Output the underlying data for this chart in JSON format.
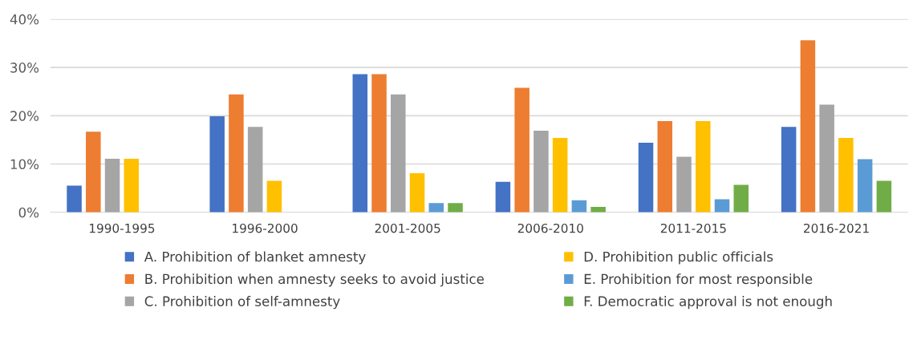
{
  "chart_data": {
    "type": "bar",
    "categories": [
      "1990-1995",
      "1996-2000",
      "2001-2005",
      "2006-2010",
      "2011-2015",
      "2016-2021"
    ],
    "series": [
      {
        "name": "A. Prohibition of blanket amnesty",
        "color": "#4472c4",
        "values": [
          5.5,
          19.9,
          28.6,
          6.3,
          14.4,
          17.7
        ]
      },
      {
        "name": "B. Prohibition when amnesty seeks to avoid justice",
        "color": "#ed7d31",
        "values": [
          16.7,
          24.4,
          28.6,
          25.8,
          18.9,
          35.6
        ]
      },
      {
        "name": "C. Prohibition of self-amnesty",
        "color": "#a5a5a5",
        "values": [
          11.1,
          17.7,
          24.4,
          16.9,
          11.5,
          22.3
        ]
      },
      {
        "name": "D. Prohibition public officials",
        "color": "#ffc000",
        "values": [
          11.1,
          6.5,
          8.1,
          15.4,
          18.9,
          15.4
        ]
      },
      {
        "name": "E. Prohibition for most responsible",
        "color": "#5b9bd5",
        "values": [
          null,
          null,
          1.9,
          2.5,
          2.7,
          11.0
        ]
      },
      {
        "name": "F. Democratic approval is not enough",
        "color": "#70ad47",
        "values": [
          null,
          null,
          1.9,
          1.1,
          5.7,
          6.5
        ]
      }
    ],
    "ylim": [
      0,
      40
    ],
    "yticks": [
      {
        "value": 0,
        "label": "0%"
      },
      {
        "value": 10,
        "label": "10%"
      },
      {
        "value": 20,
        "label": "20%"
      },
      {
        "value": 30,
        "label": "30%"
      },
      {
        "value": 40,
        "label": "40%"
      }
    ],
    "grid": "y",
    "legend": "bottom"
  }
}
